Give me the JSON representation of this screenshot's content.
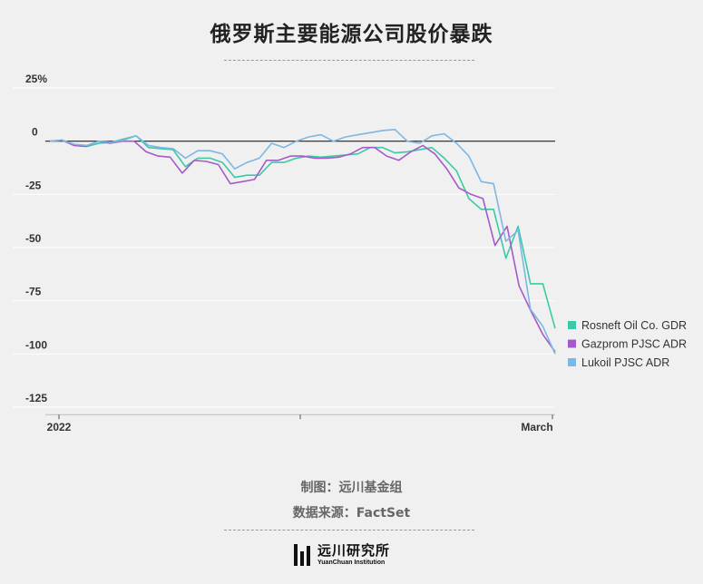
{
  "title": "俄罗斯主要能源公司股价暴跌",
  "credit_author": "制图：远川基金组",
  "credit_source": "数据来源：FactSet",
  "logo": {
    "name_cn": "远川研究所",
    "name_en": "YuanChuan Institution"
  },
  "chart_data": {
    "type": "line",
    "title": "俄罗斯主要能源公司股价暴跌",
    "xlabel": "",
    "ylabel": "",
    "ylim": [
      -128,
      28
    ],
    "yticks": [
      {
        "value": 25,
        "label": "25%"
      },
      {
        "value": 0,
        "label": "0"
      },
      {
        "value": -25,
        "label": "-25"
      },
      {
        "value": -50,
        "label": "-50"
      },
      {
        "value": -75,
        "label": "-75"
      },
      {
        "value": -100,
        "label": "-100"
      },
      {
        "value": -125,
        "label": "-125"
      }
    ],
    "xticks": [
      {
        "index": 0,
        "label": "2022"
      },
      {
        "index": 26,
        "label": ""
      },
      {
        "index": 52,
        "label": "March"
      }
    ],
    "grid": "horizontal",
    "legend_position": "right",
    "series": [
      {
        "name": "Rosneft Oil Co. GDR",
        "color": "#3cc9a6",
        "values": [
          0,
          0.5,
          -2,
          -2.5,
          -1,
          -0.5,
          1,
          2.5,
          -3,
          -3.5,
          -4,
          -12,
          -8,
          -8,
          -10,
          -17,
          -16,
          -16,
          -10,
          -10,
          -8,
          -7,
          -7.5,
          -7,
          -6.5,
          -6,
          -3,
          -3,
          -5.5,
          -5,
          -4,
          -3,
          -8,
          -14,
          -27,
          -32,
          -32,
          -55,
          -40,
          -67,
          -67,
          -88
        ]
      },
      {
        "name": "Gazprom PJSC ADR",
        "color": "#a45bc8",
        "values": [
          0,
          0.5,
          -2,
          -2.5,
          0,
          -1,
          0,
          0,
          -5,
          -7,
          -7.5,
          -15,
          -9,
          -9.5,
          -11,
          -20,
          -19,
          -18,
          -9,
          -9,
          -7,
          -7,
          -8,
          -8,
          -7.5,
          -6,
          -3,
          -3,
          -7,
          -9,
          -5,
          -2,
          -6,
          -13,
          -22,
          -25,
          -27,
          -49,
          -40,
          -68,
          -80,
          -91,
          -99
        ]
      },
      {
        "name": "Lukoil PJSC ADR",
        "color": "#7db7e3",
        "values": [
          0,
          0.5,
          -1.5,
          -2,
          0,
          -0.5,
          0.5,
          2.5,
          -2,
          -3,
          -3.5,
          -8,
          -4.5,
          -4.5,
          -6,
          -13,
          -10,
          -8,
          -1,
          -3,
          0,
          2,
          3,
          0,
          2,
          3,
          4,
          5,
          5.5,
          0,
          -1,
          2.5,
          3.5,
          -1,
          -7,
          -19,
          -20,
          -47,
          -42,
          -79,
          -87,
          -100
        ]
      }
    ]
  }
}
